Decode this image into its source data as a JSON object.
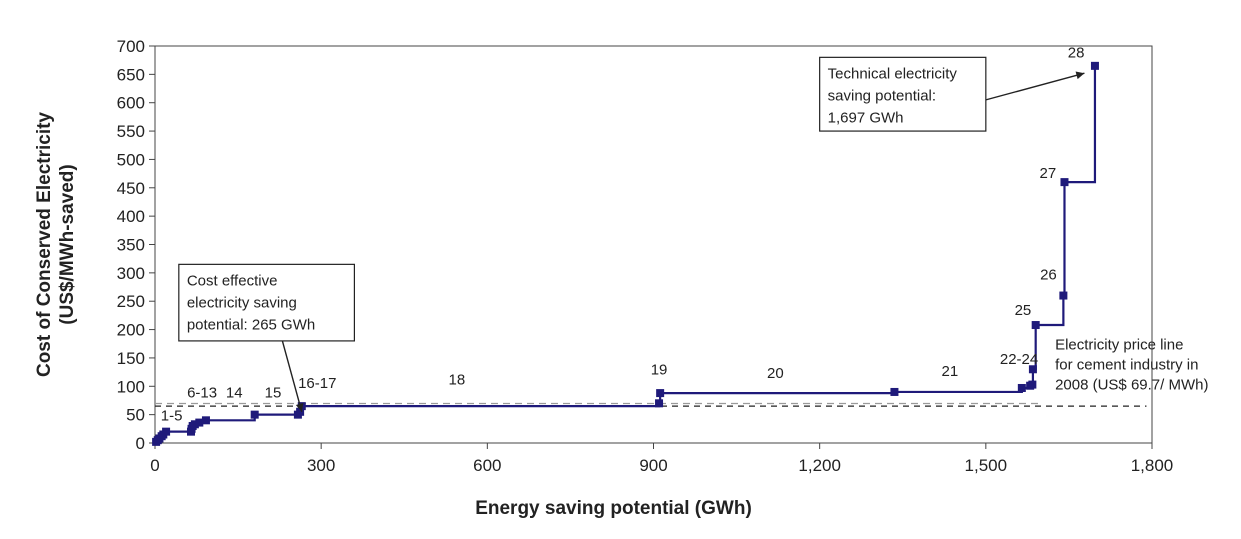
{
  "chart_data": {
    "type": "line",
    "xlabel": "Energy saving potential  (GWh)",
    "ylabel": [
      "Cost of Conserved Electricity",
      "(US$/MWh-saved)"
    ],
    "xlim": [
      0,
      1800
    ],
    "ylim": [
      0,
      700
    ],
    "x_ticks": [
      0,
      300,
      600,
      900,
      1200,
      1500,
      1800
    ],
    "x_tick_labels": [
      "0",
      "300",
      "600",
      "900",
      "1,200",
      "1,500",
      "1,800"
    ],
    "y_ticks": [
      0,
      50,
      100,
      150,
      200,
      250,
      300,
      350,
      400,
      450,
      500,
      550,
      600,
      650,
      700
    ],
    "y_tick_labels": [
      "0",
      "50",
      "100",
      "150",
      "200",
      "250",
      "300",
      "350",
      "400",
      "450",
      "500",
      "550",
      "600",
      "650",
      "700"
    ],
    "series": [
      {
        "points": [
          [
            2,
            2
          ],
          [
            5,
            5
          ],
          [
            8,
            8
          ],
          [
            12,
            12
          ],
          [
            15,
            15
          ],
          [
            20,
            20
          ],
          [
            65,
            20
          ],
          [
            66,
            25
          ],
          [
            68,
            30
          ],
          [
            72,
            33
          ],
          [
            80,
            36
          ],
          [
            92,
            40
          ],
          [
            180,
            50
          ],
          [
            258,
            50
          ],
          [
            262,
            55
          ],
          [
            265,
            65
          ],
          [
            910,
            70
          ],
          [
            912,
            88
          ],
          [
            1335,
            90
          ],
          [
            1565,
            97
          ],
          [
            1580,
            101
          ],
          [
            1584,
            103
          ],
          [
            1585,
            130
          ],
          [
            1590,
            208
          ],
          [
            1640,
            260
          ],
          [
            1642,
            460
          ],
          [
            1697,
            665
          ]
        ],
        "color": "#1f1a7a"
      }
    ],
    "reference_lines": [
      {
        "y": 69.7,
        "from_x": 0,
        "to_x": 1600,
        "dash": "gray"
      },
      {
        "y": 65,
        "from_x": 0,
        "to_x": 1790,
        "dash": "black"
      }
    ],
    "segment_labels": [
      {
        "text": "1-5",
        "x": 30,
        "y": 40
      },
      {
        "text": "6-13",
        "x": 85,
        "y": 80
      },
      {
        "text": "14",
        "x": 143,
        "y": 80
      },
      {
        "text": "15",
        "x": 213,
        "y": 80
      },
      {
        "text": "16-17",
        "x": 293,
        "y": 97
      },
      {
        "text": "18",
        "x": 545,
        "y": 103
      },
      {
        "text": "19",
        "x": 910,
        "y": 121
      },
      {
        "text": "20",
        "x": 1120,
        "y": 115
      },
      {
        "text": "21",
        "x": 1435,
        "y": 118
      },
      {
        "text": "22-24",
        "x": 1560,
        "y": 139
      },
      {
        "text": "25",
        "x": 1567,
        "y": 226
      },
      {
        "text": "26",
        "x": 1613,
        "y": 288
      },
      {
        "text": "27",
        "x": 1612,
        "y": 467
      },
      {
        "text": "28",
        "x": 1663,
        "y": 680
      }
    ],
    "annotations": [
      {
        "lines": [
          "Cost effective",
          "electricity saving",
          "potential: 265 GWh"
        ],
        "box": {
          "x0": 43,
          "x1": 360,
          "y_top": 315,
          "y_bottom": 180
        },
        "arrow_from": [
          230,
          180
        ],
        "arrow_to": [
          265,
          55
        ]
      },
      {
        "lines": [
          "Technical electricity",
          "saving potential:",
          "1,697 GWh"
        ],
        "box": {
          "x0": 1200,
          "x1": 1500,
          "y_top": 680,
          "y_bottom": 550
        },
        "arrow_from": [
          1500,
          605
        ],
        "arrow_to": [
          1678,
          652
        ]
      },
      {
        "lines": [
          "Electricity price line",
          "for cement industry in",
          "2008 (US$ 69.7/ MWh)"
        ],
        "box": null,
        "text_at": [
          1625,
          165
        ]
      }
    ]
  }
}
